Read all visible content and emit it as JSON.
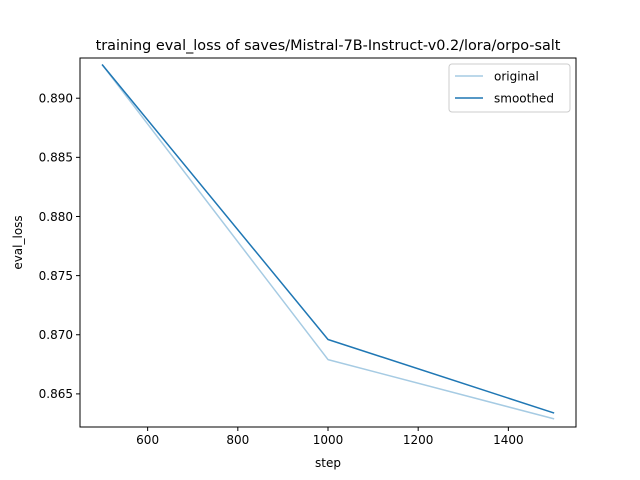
{
  "chart_data": {
    "type": "line",
    "title": "training eval_loss of saves/Mistral-7B-Instruct-v0.2/lora/orpo-salt",
    "xlabel": "step",
    "ylabel": "eval_loss",
    "xlim": [
      450,
      1550
    ],
    "ylim": [
      0.8622,
      0.8934
    ],
    "xticks": [
      600,
      800,
      1000,
      1200,
      1400
    ],
    "yticks": [
      0.865,
      0.87,
      0.875,
      0.88,
      0.885,
      0.89
    ],
    "xtick_labels": [
      "600",
      "800",
      "1000",
      "1200",
      "1400"
    ],
    "ytick_labels": [
      "0.865",
      "0.870",
      "0.875",
      "0.880",
      "0.885",
      "0.890"
    ],
    "grid": false,
    "legend_position": "top-right",
    "x": [
      500,
      1000,
      1500
    ],
    "series": [
      {
        "name": "original",
        "color": "#a6cbe3",
        "values": [
          0.8928,
          0.8679,
          0.8629
        ]
      },
      {
        "name": "smoothed",
        "color": "#1f77b4",
        "values": [
          0.8928,
          0.8696,
          0.8634
        ]
      }
    ]
  }
}
